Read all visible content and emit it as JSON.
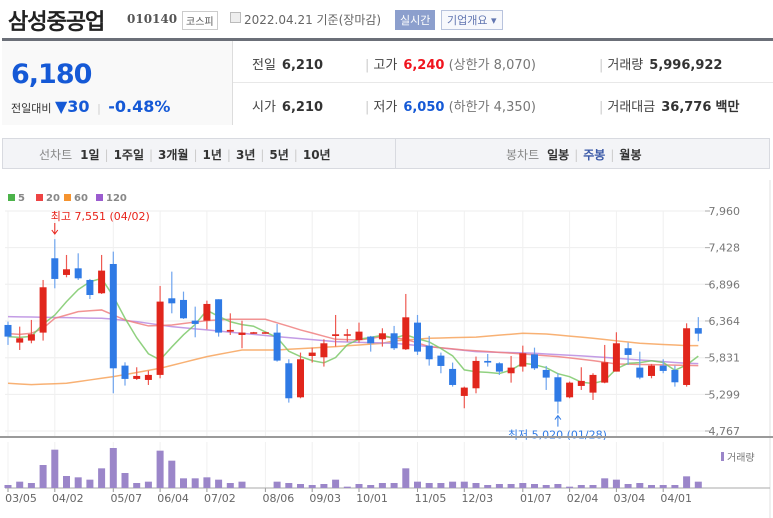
{
  "header": {
    "title": "삼성중공업",
    "code": "010140",
    "market": "코스피",
    "date": "2022.04.21 기준(장마감)",
    "realtime": "실시간",
    "company_info": "기업개요 ▾"
  },
  "price": {
    "current": "6,180",
    "change_label": "전일대비",
    "change_arrow": "▼",
    "change": "30",
    "change_pct": "-0.48%",
    "color_down": "#1559d6"
  },
  "info": {
    "prev": {
      "label": "전일",
      "value": "6,210"
    },
    "high": {
      "label": "고가",
      "value": "6,240",
      "extra": "(상한가 8,070)"
    },
    "volume": {
      "label": "거래량",
      "value": "5,996,922"
    },
    "open": {
      "label": "시가",
      "value": "6,210"
    },
    "low": {
      "label": "저가",
      "value": "6,050",
      "extra": "(하한가 4,350)"
    },
    "amount": {
      "label": "거래대금",
      "value": "36,776",
      "unit": "백만"
    }
  },
  "tabs": {
    "line_label": "선차트",
    "line_items": [
      "1일",
      "1주일",
      "3개월",
      "1년",
      "3년",
      "5년",
      "10년"
    ],
    "candle_label": "봉차트",
    "candle_items": [
      "일봉",
      "주봉",
      "월봉"
    ],
    "candle_active": "주봉"
  },
  "chart_data": {
    "type": "candlestick",
    "period": "weekly",
    "legend": [
      "5",
      "20",
      "60",
      "120"
    ],
    "legend_colors": [
      "#4cb34a",
      "#ee4444",
      "#f5932f",
      "#9b5ccf"
    ],
    "up_color": "#e1261c",
    "down_color": "#2f7ae5",
    "ylim": [
      4767,
      7960
    ],
    "yticks": [
      "7,960",
      "7,428",
      "6,896",
      "6,364",
      "5,831",
      "5,299",
      "4,767"
    ],
    "yticks_values": [
      7960,
      7428,
      6896,
      6364,
      5831,
      5299,
      4767
    ],
    "xtick_labels": [
      "03/05",
      "04/02",
      "05/07",
      "06/04",
      "07/02",
      "08/06",
      "09/03",
      "10/01",
      "11/05",
      "12/03",
      "01/07",
      "02/04",
      "03/04",
      "04/01"
    ],
    "dates": [
      "03/05",
      "03/12",
      "03/19",
      "03/26",
      "04/02",
      "04/09",
      "04/16",
      "04/23",
      "04/30",
      "05/07",
      "05/14",
      "05/21",
      "05/28",
      "06/04",
      "06/11",
      "06/18",
      "06/25",
      "07/02",
      "07/09",
      "07/16",
      "07/23",
      "07/30",
      "08/06",
      "08/13",
      "08/20",
      "08/27",
      "09/03",
      "09/10",
      "09/17",
      "09/24",
      "10/01",
      "10/08",
      "10/15",
      "10/22",
      "10/29",
      "11/05",
      "11/12",
      "11/19",
      "11/26",
      "12/03",
      "12/10",
      "12/17",
      "12/24",
      "12/31",
      "01/07",
      "01/14",
      "01/21",
      "01/28",
      "02/04",
      "02/11",
      "02/18",
      "02/25",
      "03/04",
      "03/11",
      "03/18",
      "03/25",
      "04/01",
      "04/08",
      "04/15",
      "04/22"
    ],
    "ohlc": [
      [
        6306,
        6355,
        6016,
        6137
      ],
      [
        6050,
        6282,
        5943,
        6113
      ],
      [
        6079,
        6379,
        6040,
        6171
      ],
      [
        6195,
        6959,
        6079,
        6853
      ],
      [
        7274,
        7551,
        6838,
        6974
      ],
      [
        7032,
        7322,
        6998,
        7114
      ],
      [
        7128,
        7346,
        6959,
        6983
      ],
      [
        6959,
        6974,
        6683,
        6741
      ],
      [
        6766,
        7322,
        6756,
        7095
      ],
      [
        7191,
        7370,
        5314,
        5677
      ],
      [
        5716,
        5764,
        5426,
        5523
      ],
      [
        5523,
        5692,
        5508,
        5566
      ],
      [
        5508,
        5643,
        5435,
        5581
      ],
      [
        5581,
        6872,
        5532,
        6645
      ],
      [
        6693,
        7080,
        6475,
        6620
      ],
      [
        6669,
        6790,
        6393,
        6403
      ],
      [
        6369,
        6572,
        6127,
        6321
      ],
      [
        6369,
        6659,
        6243,
        6611
      ],
      [
        6679,
        6679,
        6137,
        6195
      ],
      [
        6209,
        6475,
        6161,
        6234
      ],
      [
        6161,
        6369,
        5968,
        6195
      ],
      [
        6185,
        6205,
        6180,
        6200
      ],
      [
        6185,
        6205,
        6180,
        6200
      ],
      [
        6195,
        6321,
        5774,
        5789
      ],
      [
        5750,
        5808,
        5179,
        5242
      ],
      [
        5256,
        5905,
        5242,
        5808
      ],
      [
        5856,
        5977,
        5760,
        5905
      ],
      [
        5837,
        6098,
        5702,
        6040
      ],
      [
        6146,
        6451,
        5992,
        6171
      ],
      [
        6151,
        6248,
        6064,
        6171
      ],
      [
        6088,
        6340,
        6050,
        6209
      ],
      [
        6137,
        6147,
        5919,
        6040
      ],
      [
        6098,
        6258,
        5992,
        6185
      ],
      [
        6185,
        6292,
        5943,
        5968
      ],
      [
        5953,
        6756,
        5943,
        6417
      ],
      [
        6340,
        6451,
        5871,
        5919
      ],
      [
        6006,
        6147,
        5716,
        5808
      ],
      [
        5861,
        5905,
        5605,
        5711
      ],
      [
        5668,
        5760,
        5411,
        5435
      ],
      [
        5276,
        5411,
        5097,
        5397
      ],
      [
        5387,
        5847,
        5314,
        5784
      ],
      [
        5784,
        5885,
        5702,
        5760
      ],
      [
        5750,
        5764,
        5581,
        5629
      ],
      [
        5605,
        5856,
        5469,
        5687
      ],
      [
        5702,
        6006,
        5629,
        5895
      ],
      [
        5880,
        5977,
        5653,
        5677
      ],
      [
        5653,
        5711,
        5363,
        5542
      ],
      [
        5547,
        5605,
        5020,
        5194
      ],
      [
        5256,
        5484,
        5242,
        5469
      ],
      [
        5421,
        5692,
        5363,
        5494
      ],
      [
        5324,
        5605,
        5218,
        5581
      ],
      [
        5469,
        6016,
        5460,
        5764
      ],
      [
        5629,
        6200,
        5629,
        6040
      ],
      [
        5968,
        6050,
        5726,
        5871
      ],
      [
        5687,
        5919,
        5518,
        5542
      ],
      [
        5566,
        5740,
        5532,
        5716
      ],
      [
        5716,
        5808,
        5605,
        5639
      ],
      [
        5653,
        5716,
        5411,
        5474
      ],
      [
        5435,
        6330,
        5411,
        6258
      ],
      [
        6260,
        6420,
        6070,
        6180
      ]
    ],
    "ma20": [
      6180,
      6170,
      6185,
      6258,
      6403,
      6451,
      6500,
      6512,
      6524,
      6451,
      6379,
      6335,
      6292,
      6299,
      6306,
      6327,
      6348,
      6369,
      6379,
      6389,
      6389,
      6389,
      6389,
      6337,
      6286,
      6234,
      6189,
      6143,
      6098,
      6093,
      6088,
      6112,
      6137,
      6118,
      6098,
      6045,
      5992,
      5976,
      5959,
      5943,
      5931,
      5920,
      5908,
      5897,
      5885,
      5872,
      5860,
      5847,
      5828,
      5808,
      5789,
      5765,
      5740,
      5737,
      5733,
      5730,
      5726,
      5723,
      5719,
      5716
    ],
    "ma60": [
      5460,
      5450,
      5440,
      5447,
      5453,
      5460,
      5484,
      5508,
      5532,
      5556,
      5586,
      5616,
      5647,
      5677,
      5720,
      5762,
      5805,
      5847,
      5879,
      5911,
      5943,
      5943,
      5943,
      5943,
      5953,
      5963,
      5972,
      5982,
      5992,
      6004,
      6016,
      6028,
      6040,
      6075,
      6088,
      6100,
      6113,
      6117,
      6122,
      6126,
      6130,
      6144,
      6158,
      6171,
      6185,
      6180,
      6175,
      6160,
      6144,
      6129,
      6113,
      6095,
      6076,
      6058,
      6040,
      6032,
      6023,
      6015,
      6006,
      6006
    ],
    "ma120": [
      6427,
      6424,
      6421,
      6418,
      6415,
      6412,
      6409,
      6406,
      6403,
      6390,
      6370,
      6355,
      6330,
      6306,
      6282,
      6266,
      6250,
      6234,
      6218,
      6201,
      6185,
      6169,
      6153,
      6137,
      6122,
      6108,
      6093,
      6079,
      6064,
      6059,
      6054,
      6050,
      6045,
      6040,
      6024,
      6008,
      5992,
      5974,
      5955,
      5937,
      5919,
      5914,
      5909,
      5905,
      5900,
      5895,
      5885,
      5876,
      5866,
      5857,
      5847,
      5835,
      5823,
      5810,
      5798,
      5786,
      5774,
      5762,
      5750,
      5745
    ],
    "volume_relative": [
      9,
      19,
      15,
      69,
      115,
      36,
      32,
      25,
      59,
      120,
      45,
      15,
      19,
      112,
      82,
      29,
      29,
      32,
      25,
      15,
      19,
      0,
      0,
      19,
      15,
      12,
      9,
      12,
      25,
      4,
      12,
      9,
      15,
      15,
      59,
      19,
      15,
      15,
      19,
      19,
      15,
      9,
      12,
      12,
      15,
      12,
      9,
      12,
      4,
      9,
      9,
      29,
      25,
      12,
      15,
      9,
      9,
      9,
      35,
      19
    ],
    "volume_label": "거래량",
    "volume_color": "#9b86c9",
    "max_annotation": "최고 7,551 (04/02)",
    "min_annotation": "최저 5,020 (01/28)"
  }
}
